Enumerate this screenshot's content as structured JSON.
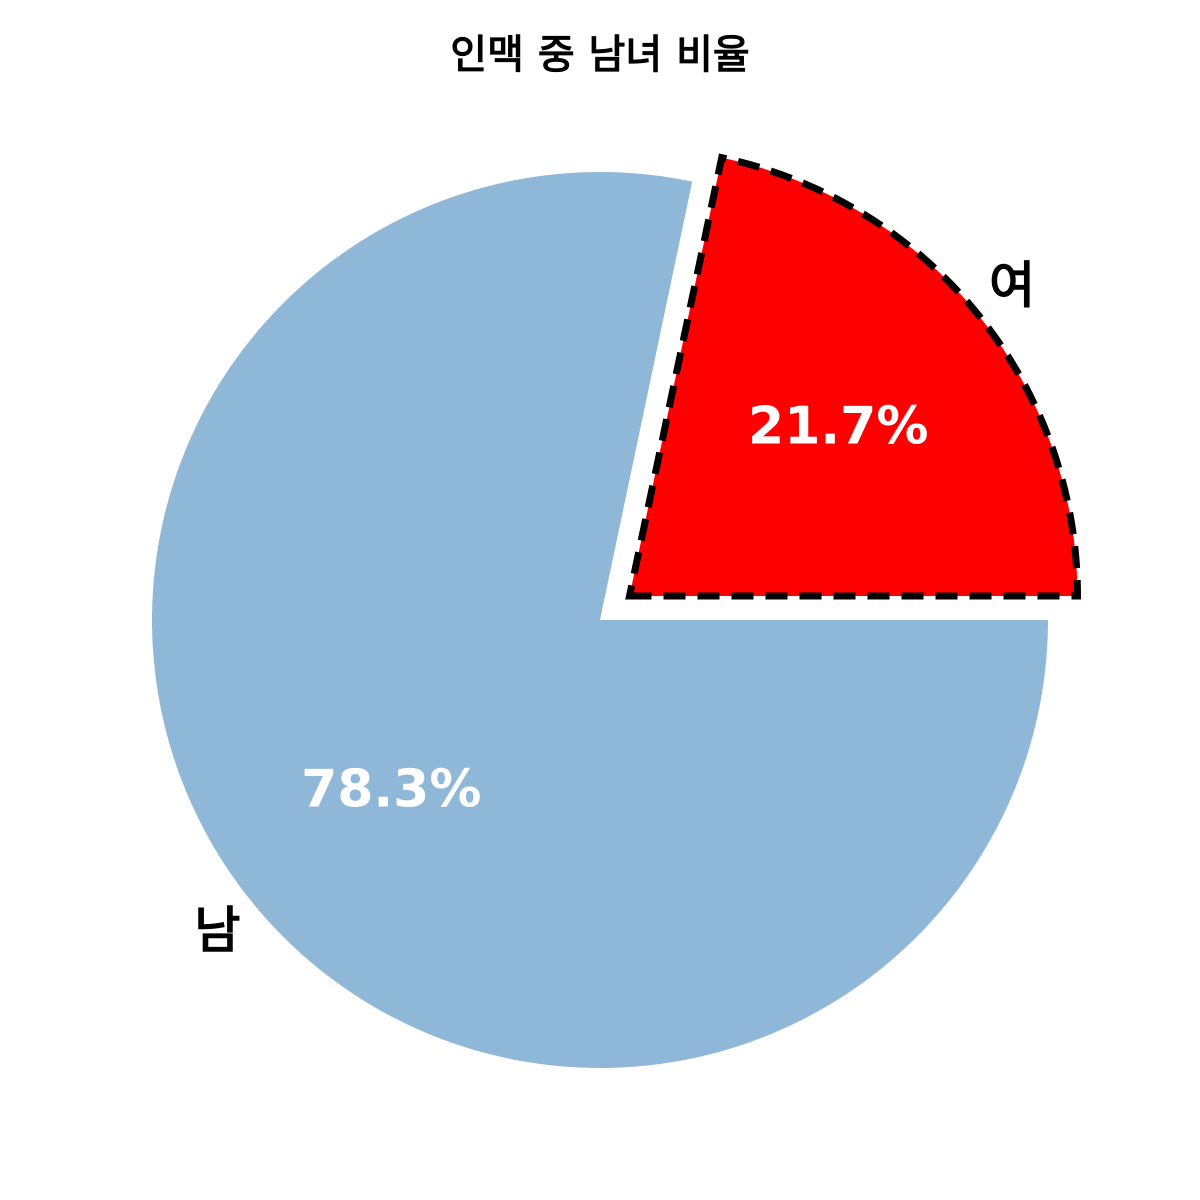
{
  "chart_data": {
    "type": "pie",
    "title": "인맥 중 남녀 비율",
    "categories": [
      "남",
      "여"
    ],
    "values": [
      78.3,
      21.7
    ],
    "value_labels": [
      "78.3%",
      "21.7%"
    ],
    "colors": [
      "#8fb8d8",
      "#ff0000"
    ],
    "exploded": [
      false,
      true
    ],
    "highlight_style": "dashed black outline on 여 slice",
    "legend": "none"
  }
}
